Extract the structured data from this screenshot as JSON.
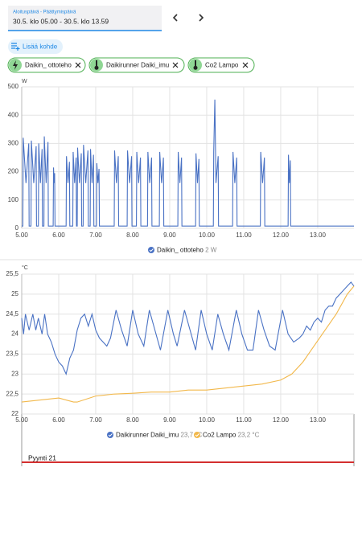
{
  "header": {
    "date_label": "Aloituspäivä - Päättymispäivä",
    "date_range": "30.5. klo 05.00 - 30.5. klo 13.59"
  },
  "add_button": "Lisää kohde",
  "chips": [
    "Daikin_ ottoteho",
    "Daikirunner Daiki_imu",
    "Co2 Lampo"
  ],
  "chart_data": [
    {
      "type": "line",
      "y_unit": "W",
      "xlim": [
        5,
        13.98
      ],
      "ylim": [
        0,
        500
      ],
      "grid": true,
      "xticks": [
        {
          "value": 5,
          "label": "5.00"
        },
        {
          "value": 6,
          "label": "6.00"
        },
        {
          "value": 7,
          "label": "7.00"
        },
        {
          "value": 8,
          "label": "8.00"
        },
        {
          "value": 9,
          "label": "9.00"
        },
        {
          "value": 10,
          "label": "10.00"
        },
        {
          "value": 11,
          "label": "11.00"
        },
        {
          "value": 12,
          "label": "12.00"
        },
        {
          "value": 13,
          "label": "13.00"
        }
      ],
      "yticks": [
        0,
        100,
        200,
        300,
        400,
        500
      ],
      "series": [
        {
          "name": "Daikin_ ottoteho",
          "state": "2 W",
          "color": "#4a72c4",
          "x": [
            5,
            5.03,
            5.04,
            5.115,
            5.19,
            5.2,
            5.25,
            5.26,
            5.325,
            5.39,
            5.4,
            5.45,
            5.46,
            5.505,
            5.55,
            5.56,
            5.6,
            5.61,
            5.66,
            5.71,
            5.72,
            5.85,
            5.86,
            5.875,
            5.89,
            5.9,
            6.2,
            6.21,
            6.25,
            6.29,
            6.3,
            6.38,
            6.39,
            6.43,
            6.47,
            6.48,
            6.5,
            6.51,
            6.56,
            6.61,
            6.62,
            6.66,
            6.67,
            6.73,
            6.79,
            6.8,
            6.85,
            6.86,
            6.9,
            6.94,
            6.95,
            7.02,
            7.03,
            7.06,
            7.09,
            7.1,
            7.5,
            7.51,
            7.56,
            7.61,
            7.62,
            7.85,
            7.86,
            7.915,
            7.97,
            7.98,
            8.1,
            8.11,
            8.16,
            8.21,
            8.22,
            8.4,
            8.41,
            8.46,
            8.51,
            8.52,
            8.72,
            8.73,
            8.78,
            8.83,
            8.84,
            9.22,
            9.23,
            9.275,
            9.32,
            9.33,
            9.7,
            9.71,
            9.75,
            9.79,
            9.8,
            10.18,
            10.19,
            10.22,
            10.25,
            10.31,
            10.32,
            10.7,
            10.71,
            10.76,
            10.81,
            10.82,
            11.45,
            11.46,
            11.51,
            11.56,
            11.57,
            12.2,
            12.21,
            12.235,
            12.26,
            12.27,
            13.98
          ],
          "values": [
            8,
            8,
            320,
            160,
            300,
            8,
            8,
            310,
            160,
            290,
            8,
            8,
            300,
            160,
            280,
            8,
            8,
            325,
            160,
            305,
            8,
            8,
            215,
            160,
            195,
            8,
            8,
            255,
            160,
            235,
            8,
            8,
            270,
            160,
            250,
            8,
            8,
            285,
            160,
            265,
            8,
            8,
            295,
            160,
            275,
            8,
            8,
            280,
            160,
            260,
            8,
            8,
            230,
            160,
            210,
            8,
            8,
            275,
            160,
            255,
            8,
            8,
            275,
            160,
            255,
            8,
            8,
            270,
            160,
            250,
            8,
            8,
            270,
            160,
            250,
            8,
            8,
            270,
            160,
            250,
            8,
            8,
            270,
            160,
            250,
            8,
            8,
            265,
            160,
            245,
            8,
            8,
            270,
            455,
            160,
            255,
            8,
            8,
            270,
            160,
            250,
            8,
            8,
            270,
            160,
            250,
            8,
            8,
            260,
            160,
            240,
            8,
            8
          ]
        }
      ]
    },
    {
      "type": "line",
      "y_unit": "°C",
      "xlim": [
        5,
        13.98
      ],
      "ylim": [
        22,
        25.5
      ],
      "grid": true,
      "xticks": [
        {
          "value": 5,
          "label": "5.00"
        },
        {
          "value": 6,
          "label": "6.00"
        },
        {
          "value": 7,
          "label": "7.00"
        },
        {
          "value": 8,
          "label": "8.00"
        },
        {
          "value": 9,
          "label": "9.00"
        },
        {
          "value": 10,
          "label": "10.00"
        },
        {
          "value": 11,
          "label": "11.00"
        },
        {
          "value": 12,
          "label": "12.00"
        },
        {
          "value": 13,
          "label": "13.00"
        }
      ],
      "yticks": [
        22,
        {
          "value": 22.5,
          "label": "22,5"
        },
        23,
        {
          "value": 23.5,
          "label": "23,5"
        },
        24,
        {
          "value": 24.5,
          "label": "24,5"
        },
        25,
        {
          "value": 25.5,
          "label": "25,5"
        }
      ],
      "series": [
        {
          "name": "Daikirunner Daiki_imu",
          "state": "23,7 °C",
          "color": "#4a72c4",
          "x": [
            5,
            5.05,
            5.1,
            5.2,
            5.3,
            5.38,
            5.45,
            5.55,
            5.62,
            5.7,
            5.8,
            5.9,
            6,
            6.1,
            6.2,
            6.3,
            6.4,
            6.5,
            6.6,
            6.7,
            6.8,
            6.9,
            7,
            7.1,
            7.2,
            7.3,
            7.4,
            7.55,
            7.7,
            7.85,
            8,
            8.15,
            8.3,
            8.45,
            8.6,
            8.75,
            8.95,
            9.1,
            9.2,
            9.4,
            9.55,
            9.7,
            9.85,
            10,
            10.15,
            10.3,
            10.45,
            10.6,
            10.8,
            10.95,
            11.1,
            11.25,
            11.4,
            11.55,
            11.7,
            11.85,
            12.05,
            12.2,
            12.35,
            12.5,
            12.6,
            12.7,
            12.8,
            12.9,
            13,
            13.1,
            13.2,
            13.3,
            13.4,
            13.5,
            13.6,
            13.7,
            13.8,
            13.9,
            13.98
          ],
          "values": [
            24.4,
            24,
            24.5,
            24.1,
            24.5,
            24.1,
            24.4,
            24,
            24.5,
            24,
            23.8,
            23.5,
            23.3,
            23.2,
            23,
            23.4,
            23.6,
            24.1,
            24.4,
            24.5,
            24.2,
            24.5,
            24.1,
            23.9,
            23.8,
            23.7,
            23.9,
            24.6,
            24.1,
            23.7,
            24.6,
            24,
            23.7,
            24.6,
            24.1,
            23.6,
            24.6,
            24,
            23.7,
            24.6,
            24.1,
            23.6,
            24.6,
            24,
            23.6,
            24.5,
            24,
            23.6,
            24.6,
            24,
            23.6,
            23.6,
            24.6,
            24.1,
            23.7,
            23.6,
            24.6,
            24,
            23.8,
            23.9,
            24,
            24.2,
            24.1,
            24.3,
            24.4,
            24.3,
            24.6,
            24.7,
            24.7,
            24.9,
            25,
            25.1,
            25.2,
            25.3,
            25.2
          ]
        },
        {
          "name": "Co2 Lampo",
          "state": "23,2 °C",
          "color": "#f2b84b",
          "x": [
            5,
            5.5,
            6,
            6.4,
            6.5,
            7,
            7.5,
            8,
            8.5,
            9,
            9.5,
            10,
            10.5,
            11,
            11.5,
            12,
            12.3,
            12.6,
            12.9,
            13.2,
            13.5,
            13.8,
            13.98
          ],
          "values": [
            22.3,
            22.35,
            22.4,
            22.3,
            22.3,
            22.45,
            22.5,
            22.52,
            22.55,
            22.55,
            22.6,
            22.6,
            22.65,
            22.7,
            22.75,
            22.85,
            23,
            23.3,
            23.7,
            24.1,
            24.5,
            25,
            25.2
          ]
        }
      ]
    }
  ],
  "timeline": {
    "label": "Pyynti 21",
    "color": "#d32f2f"
  }
}
